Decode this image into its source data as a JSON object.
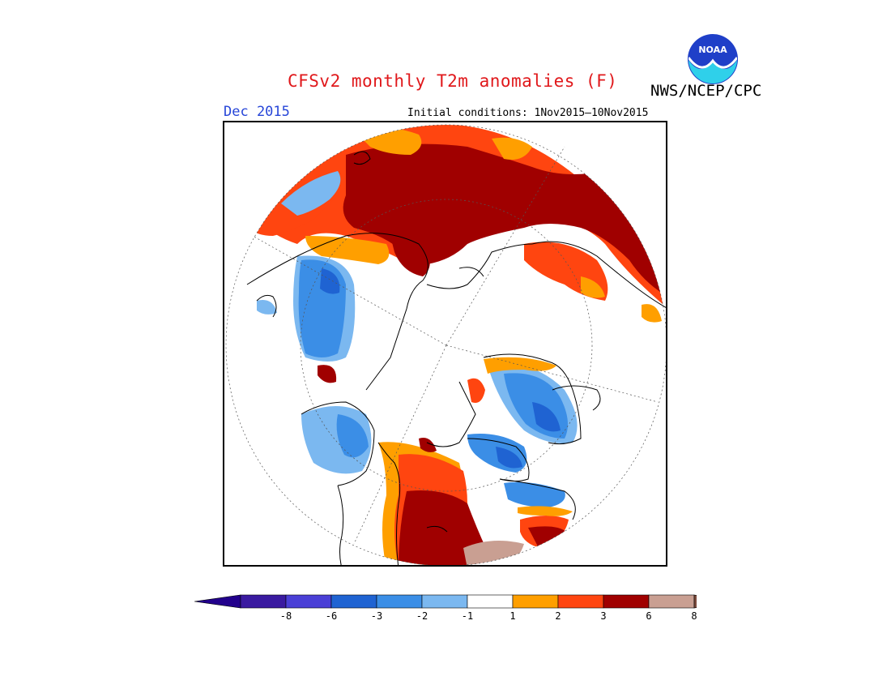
{
  "header": {
    "title": "CFSv2 monthly T2m anomalies (F)",
    "agency": "NWS/NCEP/CPC",
    "logo_text": "NOAA",
    "month": "Dec 2015",
    "initial_conditions": "Initial conditions: 1Nov2015–10Nov2015"
  },
  "colorbar": {
    "labels": [
      "-8",
      "-6",
      "-3",
      "-2",
      "-1",
      "1",
      "2",
      "3",
      "6",
      "8"
    ],
    "colors": [
      "#3a1aa0",
      "#4a3fd6",
      "#1f63d2",
      "#3b8ee6",
      "#7bb8f0",
      "#ffffff",
      "#ff9f00",
      "#ff4510",
      "#a00000",
      "#c99f92",
      "#7a4a3c"
    ],
    "under_color": "#22008c",
    "over_color": "#7a4a3c"
  },
  "colors": {
    "title": "#e0181b",
    "month": "#2746d8",
    "deep_red": "#a00000",
    "red": "#ff4510",
    "orange": "#ff9f00",
    "light_blue": "#7bb8f0",
    "blue": "#3b8ee6",
    "dark_blue": "#1f63d2",
    "tan": "#c99f92"
  }
}
